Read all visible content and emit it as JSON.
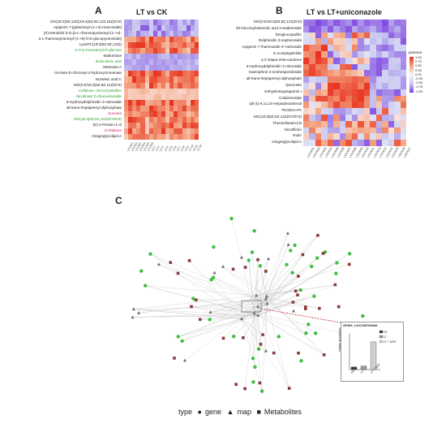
{
  "panel_a": {
    "letter": "A",
    "title": "LT vs CK",
    "rows": [
      {
        "label": "DG(18:2(9Z,12Z)/18:4(6Z,9Z,12Z,15Z)/0:0)",
        "color": "default"
      },
      {
        "label": "Apigenin 7-[galactosyl-(1->4)-mannoside]",
        "color": "default"
      },
      {
        "label": "(S)-Nerolidol 3-O-[a-L-rhamnopyranosyl-(1->4)-",
        "color": "default"
      },
      {
        "label": "a-L-rhamnopyranosyl-(1->6)-b-D-glucopyranoside]",
        "color": "default"
      },
      {
        "label": "LysoPC(18:3(6Z,9Z,12Z))",
        "color": "default"
      },
      {
        "label": "2-O-p-Coumaroyl-D-glucose",
        "color": "green"
      },
      {
        "label": "Maltotriose",
        "color": "default"
      },
      {
        "label": "Isonicotinic acid",
        "color": "green"
      },
      {
        "label": "Melosate A",
        "color": "default"
      },
      {
        "label": "cis-beta-D-Glucosyl-2-hydroxycinnamate",
        "color": "default"
      },
      {
        "label": "Norsesic acid C",
        "color": "default"
      },
      {
        "label": "MG(0:0/18:3(6Z,9Z,12Z)/0:0)",
        "color": "default"
      },
      {
        "label": "Cellulose, microcrystalline",
        "color": "green"
      },
      {
        "label": "Nicotinate D-ribonucleoside",
        "color": "green"
      },
      {
        "label": "6-Hydroxydelphinidin 3-rutinoside",
        "color": "default"
      },
      {
        "label": "all-trans-heptaprenyl diphosphate",
        "color": "default"
      },
      {
        "label": "Sucrose",
        "color": "pink"
      },
      {
        "label": "MG(16:3(6Z,9Z,12Z)/0:0/0:0)",
        "color": "green"
      },
      {
        "label": "(E)-2-Penten-1-ol",
        "color": "default"
      },
      {
        "label": "D-Maltose",
        "color": "pink"
      },
      {
        "label": "Gingerglycolipid A",
        "color": "default"
      }
    ],
    "columns": [
      "LT-CK1",
      "LT-CK2",
      "LT-CK3",
      "LT-CK4",
      "LT-CK5",
      "LT-CK6",
      "LT-1",
      "LT-2",
      "LT-3",
      "LT-4",
      "LT-5",
      "LT-6",
      "LT-7",
      "LT-8",
      "LT-9",
      "LT-10",
      "LT-11",
      "LT-12"
    ]
  },
  "panel_b": {
    "letter": "B",
    "title": "LT vs LT+uniconazole",
    "rows": [
      {
        "label": "MG(0:0/18:3(6Z,9Z,12Z)/0:0)"
      },
      {
        "label": "28-Glucosyloleanolic acid 3-arabinoside"
      },
      {
        "label": "Desglucoparillin"
      },
      {
        "label": "Delphinidin 3-sophoroside"
      },
      {
        "label": "Apigenin 7-rhamnoside-4'-rutinoside"
      },
      {
        "label": "8-Acetylegelolide"
      },
      {
        "label": "4,4'-Diapo-zeta-carotene"
      },
      {
        "label": "6-Hydroxydelphinidin 3-rutinoside"
      },
      {
        "label": "Kaempferol 3-neohesperidoside"
      },
      {
        "label": "all-trans-heptaprenyl diphosphate"
      },
      {
        "label": "Quercetin"
      },
      {
        "label": "Dehydrosoyasaponin I"
      },
      {
        "label": "Colubrinoside"
      },
      {
        "label": "(all-Z)-9,11,14-Heptadecatrienal"
      },
      {
        "label": "PKODIA-PA"
      },
      {
        "label": "MG(18:3(6Z,9Z,12Z)/0:0/0:0)"
      },
      {
        "label": "Theonellasterol B"
      },
      {
        "label": "Nicotiflorin"
      },
      {
        "label": "Rutin"
      },
      {
        "label": "Gingerglycolipid A"
      }
    ],
    "columns": [
      "LTX0001",
      "LTX0002",
      "LTX0003",
      "LTX0004",
      "LTX0005",
      "LTX0006",
      "LTX0007",
      "LTX0008",
      "LTX0009",
      "LTX0010",
      "LTX0011",
      "LTX0012",
      "LTX0013",
      "LTX0014",
      "LTX0015",
      "LTX0016",
      "LTX0017"
    ],
    "legend": {
      "title": "pearson",
      "ticks": [
        "1.00",
        "0.75",
        "0.50",
        "0.25",
        "0.00",
        "-0.25",
        "-0.50",
        "-0.75",
        "-1.00"
      ]
    }
  },
  "panel_c": {
    "letter": "C",
    "inset": {
      "title": "GPDH_LOC106765284",
      "ylabel": "relative abundance",
      "groups": [
        "CK",
        "LT",
        "LT + 5297"
      ],
      "values": [
        0.3,
        0.4,
        3.1
      ],
      "bar_colors": [
        "#3a3a3a",
        "#9a9a9a",
        "#cfcfcf"
      ],
      "legend": [
        "CK",
        "LT",
        "LT + 5297"
      ]
    }
  },
  "colors": {
    "high": "#e8321e",
    "mid_high": "#f4a584",
    "mid_low": "#c8c8f0",
    "low": "#7b3de0",
    "gene_node": "#3fbf3f",
    "metabolite_node": "#8b3a3a",
    "map_node": "#6b6b6b"
  },
  "legend_bottom": {
    "type": "type",
    "gene": "gene",
    "map": "map",
    "metabolites": "Metabolites"
  }
}
